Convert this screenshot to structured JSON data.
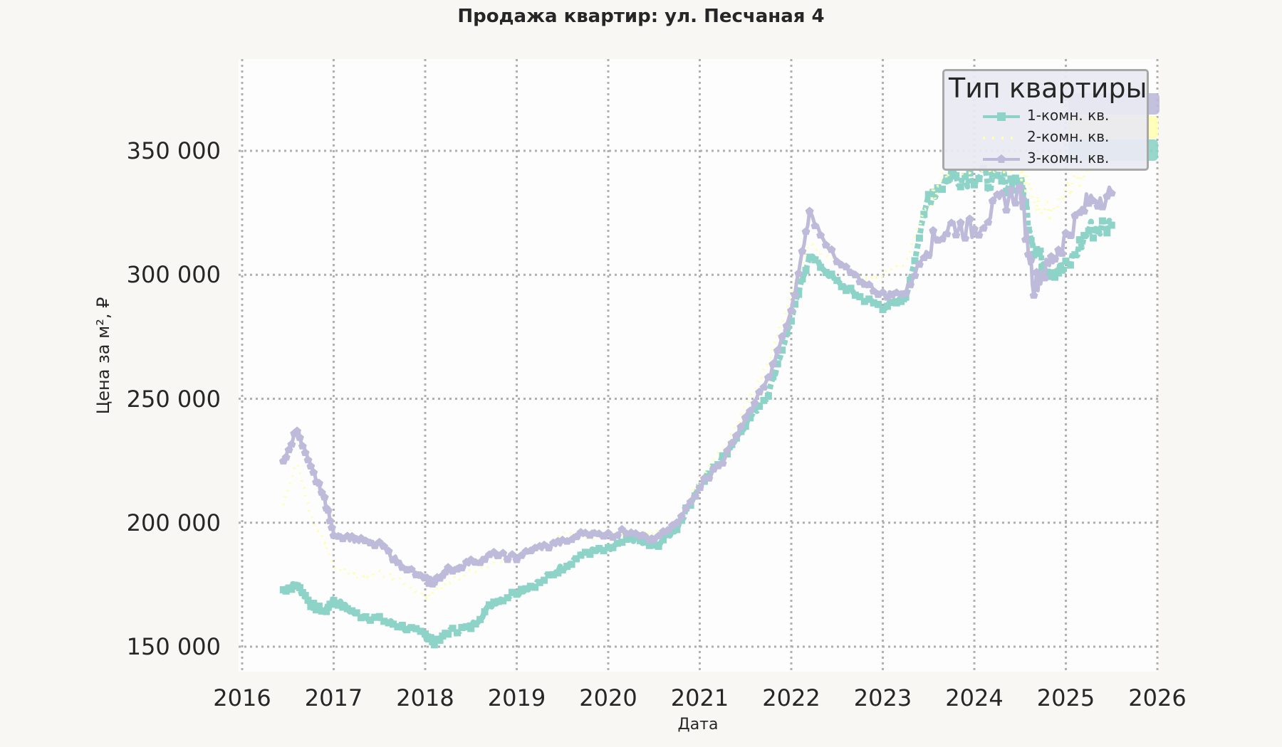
{
  "title": "Продажа квартир: ул. Песчаная 4",
  "legend": {
    "title": "Тип квартиры",
    "items": [
      {
        "label": "1-комн. кв.",
        "color": "#8dd3c7",
        "style": "solid-square"
      },
      {
        "label": "2-комн. кв.",
        "color": "#ffffb3",
        "style": "dotted"
      },
      {
        "label": "3-комн. кв.",
        "color": "#bebada",
        "style": "solid-pentagon"
      }
    ]
  },
  "axes": {
    "xlabel": "Дата",
    "ylabel": "Цена за м², ₽",
    "xticks": [
      "2016",
      "2017",
      "2018",
      "2019",
      "2020",
      "2021",
      "2022",
      "2023",
      "2024",
      "2025",
      "2026"
    ],
    "yticks": [
      "150 000",
      "200 000",
      "250 000",
      "300 000",
      "350 000"
    ]
  },
  "colors": {
    "background": "#f8f7f3",
    "plot_background": "#fdfdfd",
    "grid": "#b0b0b0",
    "one_room": "#8dd3c7",
    "two_room": "#ffffb3",
    "three_room": "#bebada"
  },
  "chart_data": {
    "type": "line",
    "title": "Продажа квартир: ул. Песчаная 4",
    "xlabel": "Дата",
    "ylabel": "Цена за м², ₽",
    "xlim": [
      2016.0,
      2026.0
    ],
    "ylim": [
      140000,
      385000
    ],
    "grid": true,
    "legend_position": "upper right",
    "legend_title": "Тип квартиры",
    "x": [
      2016.45,
      2016.6,
      2016.75,
      2016.9,
      2017.0,
      2017.25,
      2017.5,
      2017.75,
      2018.0,
      2018.1,
      2018.25,
      2018.5,
      2018.75,
      2019.0,
      2019.25,
      2019.5,
      2019.75,
      2020.0,
      2020.25,
      2020.5,
      2020.75,
      2021.0,
      2021.25,
      2021.5,
      2021.75,
      2022.0,
      2022.2,
      2022.5,
      2022.75,
      2023.0,
      2023.25,
      2023.5,
      2023.75,
      2024.0,
      2024.25,
      2024.5,
      2024.65,
      2024.8,
      2025.0,
      2025.25,
      2025.5
    ],
    "series": [
      {
        "name": "1-комн. кв.",
        "values": [
          173000,
          175000,
          167000,
          164000,
          169000,
          163000,
          161000,
          158000,
          155000,
          152000,
          156000,
          158000,
          168000,
          172000,
          176000,
          182000,
          188000,
          189000,
          194000,
          190000,
          198000,
          215000,
          226000,
          240000,
          252000,
          282000,
          308000,
          297000,
          291000,
          287000,
          290000,
          332000,
          340000,
          340000,
          337000,
          338000,
          312000,
          303000,
          302000,
          318000,
          320000
        ]
      },
      {
        "name": "2-комн. кв.",
        "values": [
          208000,
          225000,
          202000,
          192000,
          183000,
          178000,
          180000,
          177000,
          170000,
          172000,
          176000,
          180000,
          183000,
          187000,
          190000,
          196000,
          194000,
          195000,
          196000,
          196000,
          199000,
          218000,
          230000,
          247000,
          265000,
          292000,
          312000,
          305000,
          298000,
          300000,
          305000,
          330000,
          345000,
          343000,
          345000,
          343000,
          330000,
          325000,
          333000,
          345000,
          348000
        ]
      },
      {
        "name": "3-комн. кв.",
        "values": [
          224000,
          238000,
          222000,
          210000,
          196000,
          193000,
          191000,
          183000,
          177000,
          176000,
          181000,
          184000,
          187000,
          186000,
          190000,
          192000,
          196000,
          195000,
          197000,
          193000,
          199000,
          215000,
          225000,
          242000,
          258000,
          285000,
          325000,
          305000,
          298000,
          292000,
          293000,
          312000,
          320000,
          318000,
          328000,
          334000,
          296000,
          303000,
          315000,
          330000,
          333000
        ]
      }
    ]
  }
}
